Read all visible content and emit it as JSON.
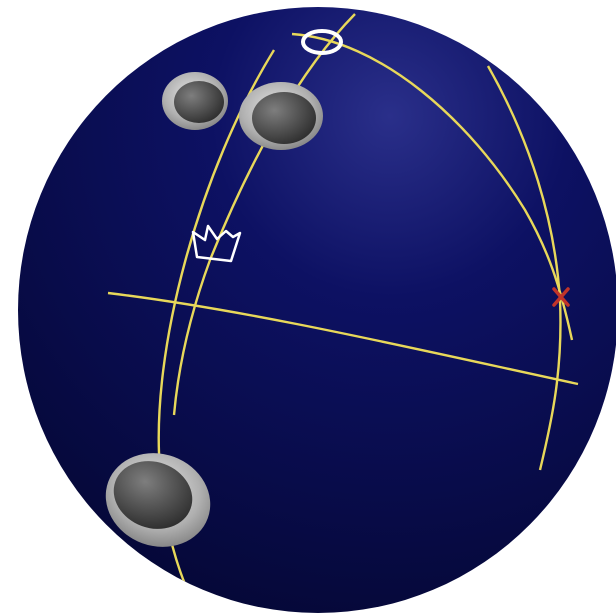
{
  "scene": {
    "subject": "bowling-ball",
    "colors": {
      "background": "#ffffff",
      "ball_base": "#0b0f5a",
      "ball_shadow": "#040633",
      "ball_highlight": "#2a2f8a",
      "layout_lines": "#e8d85a",
      "hole_rim": "#b9b9b9",
      "hole_inner": "#5a5a5a",
      "pin_marker": "#ffffff",
      "cg_marker": "#ffffff",
      "x_marker": "#c0342a"
    },
    "markers": [
      {
        "name": "pin-marker",
        "shape": "ring"
      },
      {
        "name": "cg-marker",
        "shape": "crown-outline"
      },
      {
        "name": "axis-marker",
        "shape": "x"
      }
    ],
    "holes": [
      {
        "name": "finger-hole-left"
      },
      {
        "name": "finger-hole-right"
      },
      {
        "name": "thumb-hole"
      }
    ]
  }
}
